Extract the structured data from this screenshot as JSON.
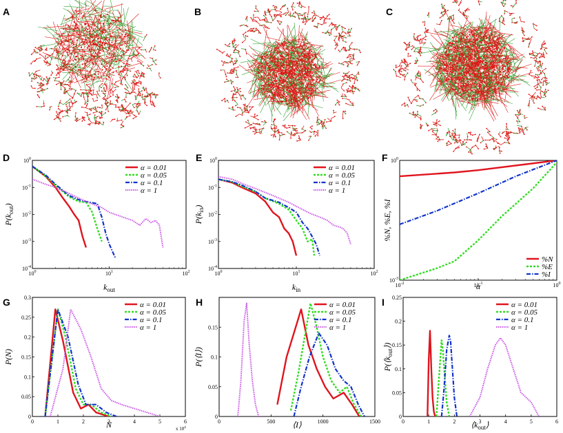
{
  "colors": {
    "s1": "#e0141e",
    "s2": "#33dd22",
    "s3": "#1133cc",
    "s4": "#c855e6",
    "net_red": "#e01818",
    "net_green": "#2fa02f"
  },
  "styles": [
    {
      "color": "#e0141e",
      "dash": "",
      "width": 2.4
    },
    {
      "color": "#33dd22",
      "dash": "3,2",
      "width": 2.4
    },
    {
      "color": "#1133cc",
      "dash": "6,2,1.5,2",
      "width": 2.2
    },
    {
      "color": "#c855e6",
      "dash": "1.5,1.2",
      "width": 2.0
    }
  ],
  "labels": {
    "A": "A",
    "B": "B",
    "C": "C",
    "D": "D",
    "E": "E",
    "F": "F",
    "G": "G",
    "H": "H",
    "I": "I"
  },
  "networks": [
    {
      "label": "A",
      "description": "network with a single hub cluster above scattered small components"
    },
    {
      "label": "B",
      "description": "dense core surrounded by a ring of small components"
    },
    {
      "label": "C",
      "description": "large dense core surrounded by a ring of small components"
    }
  ],
  "chart_data": [
    {
      "panel": "D",
      "type": "line",
      "xscale": "log",
      "yscale": "log",
      "xlabel": "k_out",
      "ylabel": "P(k_out)",
      "xlim": [
        1,
        100
      ],
      "ylim": [
        0.0001,
        1
      ],
      "xticks": [
        {
          "v": 1,
          "t": "10",
          "e": "0"
        },
        {
          "v": 10,
          "t": "10",
          "e": "1"
        },
        {
          "v": 100,
          "t": "10",
          "e": "2"
        }
      ],
      "yticks": [
        {
          "v": 1,
          "t": "10",
          "e": "0"
        },
        {
          "v": 0.1,
          "t": "10",
          "e": "-1"
        },
        {
          "v": 0.01,
          "t": "10",
          "e": "-2"
        },
        {
          "v": 0.001,
          "t": "10",
          "e": "-3"
        },
        {
          "v": 0.0001,
          "t": "10",
          "e": "-4"
        }
      ],
      "legend": {
        "position": "top-right",
        "labels": [
          "α = 0.01",
          "α = 0.05",
          "α = 0.1",
          "α = 1"
        ]
      },
      "series": [
        {
          "name": "α = 0.01",
          "x": [
            1,
            1.5,
            2,
            2.5,
            3,
            3.5,
            4,
            4.5,
            5
          ],
          "y": [
            0.6,
            0.25,
            0.1,
            0.04,
            0.02,
            0.01,
            0.006,
            0.0015,
            0.0006
          ]
        },
        {
          "name": "α = 0.05",
          "x": [
            1,
            1.5,
            2,
            3,
            4,
            5,
            6,
            7,
            8
          ],
          "y": [
            0.6,
            0.26,
            0.12,
            0.045,
            0.03,
            0.028,
            0.012,
            0.003,
            0.001
          ]
        },
        {
          "name": "α = 0.1",
          "x": [
            1,
            1.5,
            2,
            3,
            4,
            5,
            7,
            8,
            9,
            10,
            12
          ],
          "y": [
            0.6,
            0.28,
            0.13,
            0.05,
            0.035,
            0.03,
            0.025,
            0.008,
            0.002,
            0.0008,
            0.00025
          ]
        },
        {
          "name": "α = 1",
          "x": [
            1,
            1.5,
            2,
            3,
            5,
            8,
            10,
            15,
            20,
            25,
            30,
            35,
            40,
            45,
            50
          ],
          "y": [
            0.2,
            0.13,
            0.1,
            0.06,
            0.03,
            0.018,
            0.012,
            0.008,
            0.006,
            0.004,
            0.007,
            0.005,
            0.006,
            0.004,
            0.0006
          ]
        }
      ]
    },
    {
      "panel": "E",
      "type": "line",
      "xscale": "log",
      "yscale": "log",
      "xlabel": "k_in",
      "ylabel": "P(k_in)",
      "xlim": [
        1,
        100
      ],
      "ylim": [
        0.0001,
        1
      ],
      "xticks": [
        {
          "v": 1,
          "t": "10",
          "e": "0"
        },
        {
          "v": 10,
          "t": "10",
          "e": "1"
        },
        {
          "v": 100,
          "t": "10",
          "e": "2"
        }
      ],
      "yticks": [
        {
          "v": 1,
          "t": "10",
          "e": "0"
        },
        {
          "v": 0.1,
          "t": "10",
          "e": "-1"
        },
        {
          "v": 0.01,
          "t": "10",
          "e": "-2"
        },
        {
          "v": 0.001,
          "t": "10",
          "e": "-3"
        },
        {
          "v": 0.0001,
          "t": "10",
          "e": "-4"
        }
      ],
      "legend": {
        "position": "top-right",
        "labels": [
          "α = 0.01",
          "α = 0.05",
          "α = 0.1",
          "α = 1"
        ]
      },
      "series": [
        {
          "name": "α = 0.01",
          "x": [
            1,
            1.5,
            2,
            3,
            4,
            5,
            6,
            7,
            8,
            9,
            10
          ],
          "y": [
            0.2,
            0.15,
            0.1,
            0.06,
            0.03,
            0.012,
            0.008,
            0.003,
            0.002,
            0.001,
            0.0003
          ]
        },
        {
          "name": "α = 0.05",
          "x": [
            1,
            1.5,
            2,
            3,
            4,
            6,
            8,
            10,
            12,
            14,
            16,
            17
          ],
          "y": [
            0.2,
            0.16,
            0.11,
            0.07,
            0.04,
            0.025,
            0.015,
            0.006,
            0.003,
            0.001,
            0.0012,
            0.0003
          ]
        },
        {
          "name": "α = 0.1",
          "x": [
            1,
            1.5,
            2,
            3,
            4,
            6,
            8,
            10,
            12,
            14,
            16,
            18,
            20
          ],
          "y": [
            0.2,
            0.16,
            0.12,
            0.07,
            0.04,
            0.028,
            0.018,
            0.012,
            0.005,
            0.003,
            0.0015,
            0.0008,
            0.0003
          ]
        },
        {
          "name": "α = 1",
          "x": [
            1,
            1.5,
            2,
            3,
            5,
            8,
            10,
            15,
            20,
            25,
            30,
            35,
            40,
            45,
            50
          ],
          "y": [
            0.25,
            0.2,
            0.14,
            0.09,
            0.05,
            0.028,
            0.02,
            0.011,
            0.008,
            0.006,
            0.004,
            0.0035,
            0.003,
            0.002,
            0.0008
          ]
        }
      ]
    },
    {
      "panel": "F",
      "type": "line",
      "xscale": "log",
      "yscale": "log",
      "xlabel": "α",
      "ylabel": "%N, %E, %I",
      "xlim": [
        0.01,
        1
      ],
      "ylim": [
        0.001,
        1
      ],
      "xticks": [
        {
          "v": 0.01,
          "t": "10",
          "e": "-2"
        },
        {
          "v": 0.1,
          "t": "10",
          "e": "-1"
        },
        {
          "v": 1,
          "t": "10",
          "e": "0"
        }
      ],
      "yticks": [
        {
          "v": 1,
          "t": "10",
          "e": "0"
        },
        {
          "v": 0.001,
          "t": "10",
          "e": "-3"
        }
      ],
      "legend": {
        "position": "bottom-right",
        "labels": [
          "%N",
          "%E",
          "%I"
        ]
      },
      "series": [
        {
          "name": "%N",
          "x": [
            0.01,
            0.05,
            0.1,
            1
          ],
          "y": [
            0.4,
            0.5,
            0.57,
            1
          ]
        },
        {
          "name": "%E",
          "x": [
            0.01,
            0.03,
            0.05,
            0.1,
            0.2,
            0.5,
            1
          ],
          "y": [
            0.001,
            0.002,
            0.003,
            0.01,
            0.04,
            0.2,
            0.9
          ]
        },
        {
          "name": "%I",
          "x": [
            0.01,
            0.03,
            0.1,
            0.3,
            1
          ],
          "y": [
            0.025,
            0.055,
            0.15,
            0.4,
            1
          ]
        }
      ]
    },
    {
      "panel": "G",
      "type": "line",
      "xscale": "linear",
      "yscale": "linear",
      "xlabel": "N",
      "ylabel": "P(N)",
      "xlim": [
        0,
        6
      ],
      "ylim": [
        0,
        0.3
      ],
      "x_multiplier": "x 10^4",
      "xticks": [
        {
          "v": 0,
          "t": "0"
        },
        {
          "v": 1,
          "t": "1"
        },
        {
          "v": 2,
          "t": "2"
        },
        {
          "v": 3,
          "t": "3"
        },
        {
          "v": 4,
          "t": "4"
        },
        {
          "v": 5,
          "t": "5"
        },
        {
          "v": 6,
          "t": "6"
        }
      ],
      "yticks": [
        {
          "v": 0,
          "t": "0"
        },
        {
          "v": 0.05,
          "t": "0.05"
        },
        {
          "v": 0.1,
          "t": "0.1"
        },
        {
          "v": 0.15,
          "t": "0.15"
        },
        {
          "v": 0.2,
          "t": "0.2"
        },
        {
          "v": 0.25,
          "t": "0.25"
        },
        {
          "v": 0.3,
          "t": "0.3"
        }
      ],
      "legend": {
        "position": "top-right",
        "labels": [
          "α = 0.01",
          "α = 0.05",
          "α = 0.1",
          "α = 1"
        ]
      },
      "series": [
        {
          "name": "α = 0.01",
          "x": [
            0.5,
            0.9,
            1.2,
            1.6,
            1.9,
            2.2,
            2.5,
            3.0
          ],
          "y": [
            0.0,
            0.27,
            0.19,
            0.06,
            0.02,
            0.03,
            0.01,
            0.0
          ]
        },
        {
          "name": "α = 0.05",
          "x": [
            0.5,
            1.0,
            1.3,
            1.7,
            2.0,
            2.3,
            2.7,
            3.1
          ],
          "y": [
            0.0,
            0.27,
            0.2,
            0.07,
            0.03,
            0.03,
            0.01,
            0.0
          ]
        },
        {
          "name": "α = 0.1",
          "x": [
            0.5,
            1.0,
            1.4,
            1.8,
            2.1,
            2.5,
            2.9,
            3.3
          ],
          "y": [
            0.0,
            0.27,
            0.2,
            0.08,
            0.03,
            0.03,
            0.01,
            0.0
          ]
        },
        {
          "name": "α = 1",
          "x": [
            0.7,
            1.2,
            1.5,
            1.9,
            2.3,
            2.7,
            3.1,
            3.5,
            4.0,
            4.5,
            5.0
          ],
          "y": [
            0.0,
            0.12,
            0.27,
            0.22,
            0.15,
            0.07,
            0.04,
            0.03,
            0.02,
            0.01,
            0.0
          ]
        }
      ]
    },
    {
      "panel": "H",
      "type": "line",
      "xscale": "linear",
      "yscale": "linear",
      "xlabel": "⟨I⟩",
      "ylabel": "P(⟨I⟩)",
      "xlim": [
        0,
        1500
      ],
      "ylim": [
        0,
        0.2
      ],
      "xticks": [
        {
          "v": 0,
          "t": "0"
        },
        {
          "v": 500,
          "t": "500"
        },
        {
          "v": 1000,
          "t": "1000"
        },
        {
          "v": 1500,
          "t": "1500"
        }
      ],
      "yticks": [
        {
          "v": 0,
          "t": "0"
        },
        {
          "v": 0.05,
          "t": "0.05"
        },
        {
          "v": 0.1,
          "t": "0.1"
        },
        {
          "v": 0.15,
          "t": "0.15"
        }
      ],
      "legend": {
        "position": "top-right",
        "labels": [
          "α = 0.01",
          "α = 0.05",
          "α = 0.1",
          "α = 1"
        ]
      },
      "series": [
        {
          "name": "α = 0.01",
          "x": [
            560,
            650,
            720,
            790,
            860,
            940,
            1020,
            1100,
            1200,
            1280,
            1350
          ],
          "y": [
            0.02,
            0.1,
            0.14,
            0.18,
            0.12,
            0.08,
            0.05,
            0.03,
            0.04,
            0.02,
            0.0
          ]
        },
        {
          "name": "α = 0.05",
          "x": [
            690,
            760,
            830,
            880,
            940,
            1000,
            1080,
            1160,
            1230,
            1300,
            1370
          ],
          "y": [
            0.01,
            0.07,
            0.14,
            0.19,
            0.15,
            0.1,
            0.06,
            0.04,
            0.05,
            0.02,
            0.0
          ]
        },
        {
          "name": "α = 0.1",
          "x": [
            720,
            790,
            870,
            960,
            1040,
            1120,
            1200,
            1270,
            1340,
            1400
          ],
          "y": [
            0.0,
            0.05,
            0.1,
            0.14,
            0.12,
            0.08,
            0.06,
            0.05,
            0.02,
            0.0
          ]
        },
        {
          "name": "α = 1",
          "x": [
            180,
            210,
            240,
            265,
            290,
            320,
            350,
            380
          ],
          "y": [
            0.0,
            0.06,
            0.16,
            0.19,
            0.12,
            0.06,
            0.02,
            0.0
          ]
        }
      ]
    },
    {
      "panel": "I",
      "type": "line",
      "xscale": "linear",
      "yscale": "linear",
      "xlabel": "⟨k_out⟩",
      "ylabel": "P(⟨k_out⟩)",
      "xlim": [
        0,
        6
      ],
      "ylim": [
        0,
        0.25
      ],
      "xticks": [
        {
          "v": 0,
          "t": "0"
        },
        {
          "v": 1,
          "t": "1"
        },
        {
          "v": 2,
          "t": "2"
        },
        {
          "v": 3,
          "t": "3"
        },
        {
          "v": 4,
          "t": "4"
        },
        {
          "v": 5,
          "t": "5"
        },
        {
          "v": 6,
          "t": "6"
        }
      ],
      "yticks": [
        {
          "v": 0,
          "t": "0"
        },
        {
          "v": 0.05,
          "t": "0.05"
        },
        {
          "v": 0.1,
          "t": "0.1"
        },
        {
          "v": 0.15,
          "t": "0.15"
        },
        {
          "v": 0.2,
          "t": "0.2"
        },
        {
          "v": 0.25,
          "t": "0.25"
        }
      ],
      "legend": {
        "position": "top-right",
        "labels": [
          "α = 0.01",
          "α = 0.05",
          "α = 0.1",
          "α = 1"
        ]
      },
      "series": [
        {
          "name": "α = 0.01",
          "x": [
            0.95,
            1.0,
            1.05,
            1.1,
            1.15,
            1.2,
            1.25
          ],
          "y": [
            0.0,
            0.12,
            0.18,
            0.1,
            0.04,
            0.01,
            0.0
          ]
        },
        {
          "name": "α = 0.05",
          "x": [
            1.3,
            1.4,
            1.5,
            1.55,
            1.6,
            1.7,
            1.8
          ],
          "y": [
            0.0,
            0.08,
            0.16,
            0.14,
            0.1,
            0.03,
            0.0
          ]
        },
        {
          "name": "α = 0.1",
          "x": [
            1.5,
            1.6,
            1.7,
            1.8,
            1.85,
            1.9,
            2.0,
            2.1
          ],
          "y": [
            0.0,
            0.06,
            0.14,
            0.17,
            0.16,
            0.12,
            0.04,
            0.0
          ]
        },
        {
          "name": "α = 1",
          "x": [
            2.6,
            3.0,
            3.3,
            3.6,
            3.8,
            4.0,
            4.3,
            4.6,
            5.0,
            5.3
          ],
          "y": [
            0.0,
            0.04,
            0.1,
            0.15,
            0.165,
            0.15,
            0.1,
            0.05,
            0.03,
            0.0
          ]
        }
      ]
    }
  ]
}
